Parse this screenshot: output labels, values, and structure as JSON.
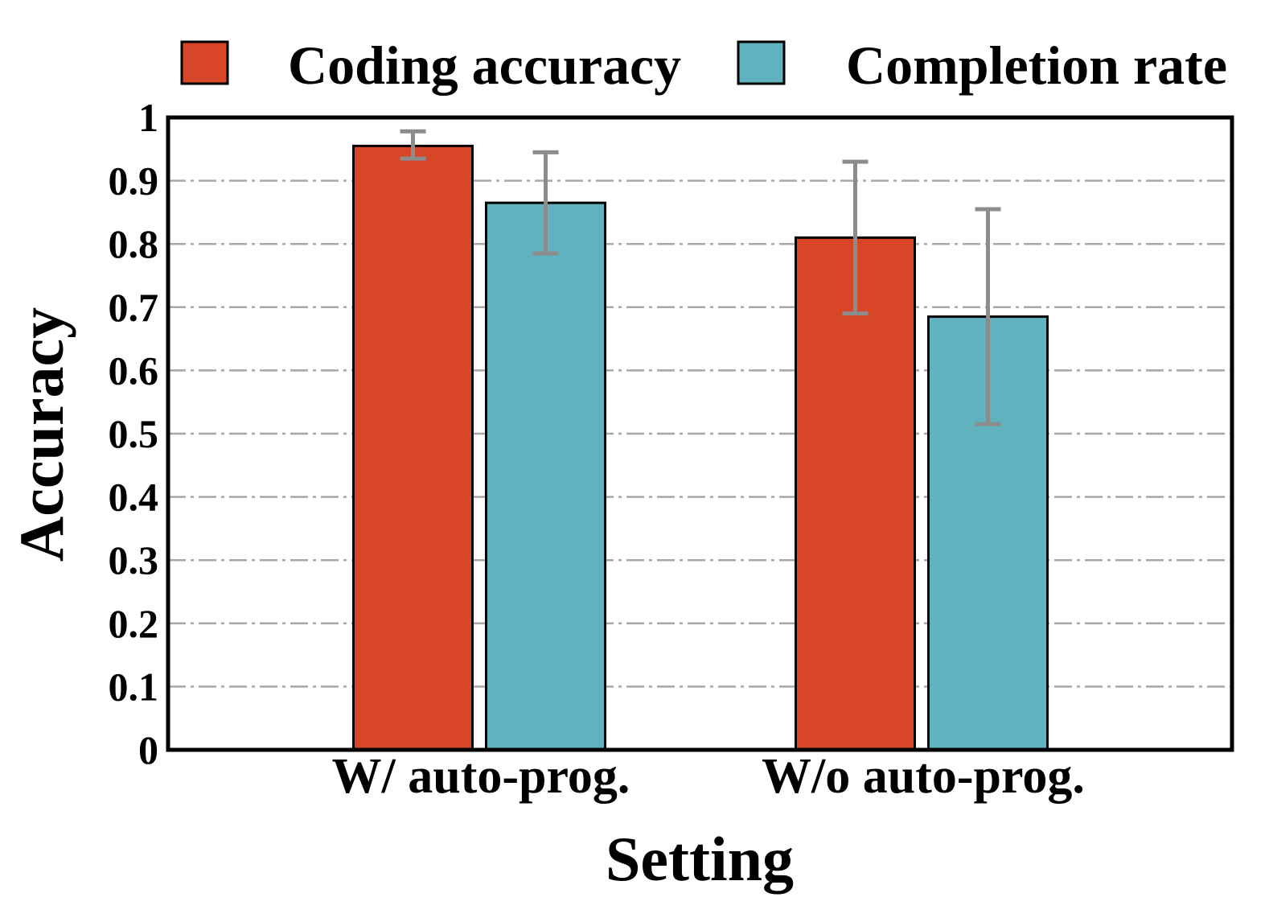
{
  "chart_data": {
    "type": "bar",
    "title": "",
    "xlabel": "Setting",
    "ylabel": "Accuracy",
    "ylim": [
      0,
      1
    ],
    "yticks": [
      0,
      0.1,
      0.2,
      0.3,
      0.4,
      0.5,
      0.6,
      0.7,
      0.8,
      0.9,
      1
    ],
    "ytick_labels": [
      "0",
      "0.1",
      "0.2",
      "0.3",
      "0.4",
      "0.5",
      "0.6",
      "0.7",
      "0.8",
      "0.9",
      "1"
    ],
    "grid": true,
    "legend_position": "top",
    "categories": [
      "W/ auto-prog.",
      "W/o auto-prog."
    ],
    "series": [
      {
        "name": "Coding accuracy",
        "color": "#d84628",
        "values": [
          0.955,
          0.81
        ],
        "error_low": [
          0.935,
          0.69
        ],
        "error_high": [
          0.978,
          0.93
        ]
      },
      {
        "name": "Completion rate",
        "color": "#60b2bf",
        "values": [
          0.865,
          0.685
        ],
        "error_low": [
          0.785,
          0.515
        ],
        "error_high": [
          0.945,
          0.855
        ]
      }
    ],
    "error_bar_color": "#8c8c8c"
  }
}
